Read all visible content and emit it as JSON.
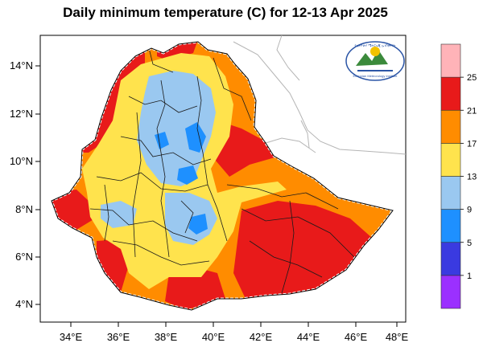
{
  "title": "Daily minimum temperature (C) for 12-13 Apr 2025",
  "axes": {
    "lat_labels": [
      "14°N",
      "12°N",
      "10°N",
      "8°N",
      "6°N",
      "4°N"
    ],
    "lon_labels": [
      "34°E",
      "36°E",
      "38°E",
      "40°E",
      "42°E",
      "44°E",
      "46°E",
      "48°E"
    ]
  },
  "colorbar": {
    "levels": [
      "1",
      "5",
      "9",
      "13",
      "17",
      "21",
      "25"
    ],
    "colors": [
      "#9b30ff",
      "#3a3ae0",
      "#1e90ff",
      "#9ac8f0",
      "#ffe34d",
      "#ff8c00",
      "#e81a1a",
      "#ffb3b8"
    ]
  },
  "logo": {
    "org_name": "Ethiopian Meteorology Institute",
    "amharic_text": "የኢትዮጵያ ሜትሮሎጂ ኢንስቲትዩት"
  }
}
